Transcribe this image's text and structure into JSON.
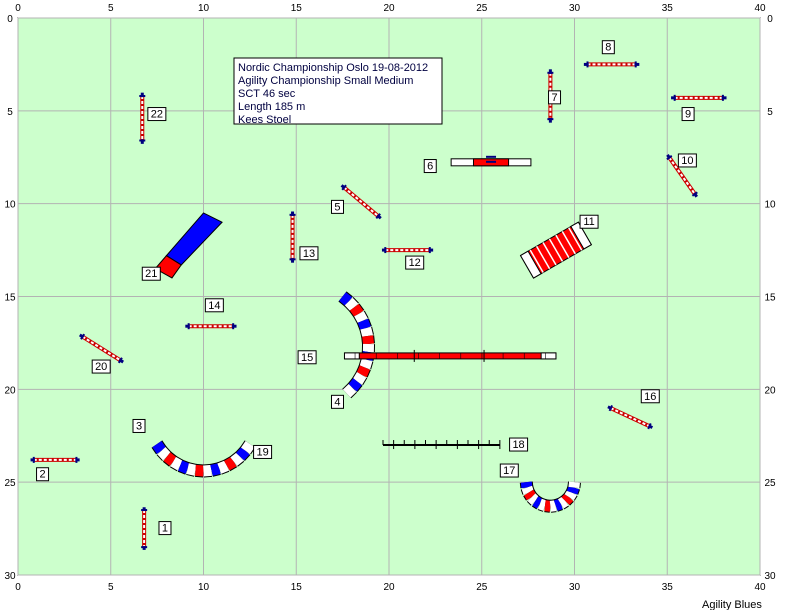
{
  "field": {
    "width": 40,
    "height": 30,
    "x_ticks": [
      0,
      5,
      10,
      15,
      20,
      25,
      30,
      35,
      40
    ],
    "y_ticks": [
      0,
      5,
      10,
      15,
      20,
      25,
      30
    ],
    "background": "#ccffcc",
    "grid_color": "#b3b3b3"
  },
  "info_lines": [
    "Nordic Championship Oslo 19-08-2012",
    "Agility Championship Small Medium",
    "SCT 46 sec",
    "Length 185 m",
    "Kees Stoel"
  ],
  "brand": "Agility Blues",
  "colors": {
    "pole": "#000080",
    "bar": "#ffffff",
    "bar_outline": "#cc0000",
    "red": "#ff0000",
    "blue": "#0000ff",
    "white": "#ffffff",
    "tunnel_blue": "#0000ff"
  },
  "obstacles": [
    {
      "num": "1",
      "type": "jump",
      "x": 6.8,
      "y": 27.5,
      "angle": 90,
      "len": 2,
      "label": [
        7.6,
        27.5
      ]
    },
    {
      "num": "2",
      "type": "jump",
      "x": 2.0,
      "y": 23.8,
      "angle": 0,
      "len": 2.3,
      "label": [
        1.0,
        24.6
      ]
    },
    {
      "num": "3",
      "type": "tunnel",
      "cx": 10,
      "cy": 21.5,
      "r": 2.9,
      "a0": 150,
      "a1": 30,
      "label": [
        6.2,
        22.0
      ]
    },
    {
      "num": "4",
      "type": "tunnel",
      "cx": 15.6,
      "cy": 17.7,
      "r": 3.3,
      "a0": -55,
      "a1": 50,
      "label": [
        16.9,
        20.7
      ]
    },
    {
      "num": "5",
      "type": "jump",
      "x": 18.5,
      "y": 9.9,
      "angle": 40,
      "len": 2.4,
      "label": [
        16.9,
        10.2
      ]
    },
    {
      "num": "6",
      "type": "tire",
      "x": 25.5,
      "y": 7.8,
      "angle": 0,
      "len": 4.3,
      "label": [
        21.9,
        8.0
      ]
    },
    {
      "num": "7",
      "type": "jump",
      "x": 28.7,
      "y": 4.2,
      "angle": 90,
      "len": 2.5,
      "label": [
        28.6,
        4.3
      ]
    },
    {
      "num": "8",
      "type": "jump",
      "x": 32.0,
      "y": 2.5,
      "angle": 0,
      "len": 2.6,
      "label": [
        31.5,
        1.6
      ]
    },
    {
      "num": "9",
      "type": "jump",
      "x": 36.7,
      "y": 4.3,
      "angle": 0,
      "len": 2.6,
      "label": [
        35.8,
        5.2
      ]
    },
    {
      "num": "10",
      "type": "jump",
      "x": 35.8,
      "y": 8.5,
      "angle": 55,
      "len": 2.4,
      "label": [
        35.6,
        7.7
      ]
    },
    {
      "num": "11",
      "type": "tunnel_straight",
      "x": 29.0,
      "y": 12.5,
      "angle": -30,
      "len": 3.6,
      "w": 1.4,
      "label": [
        30.3,
        11.0
      ]
    },
    {
      "num": "12",
      "type": "jump",
      "x": 21.0,
      "y": 12.5,
      "angle": 0,
      "len": 2.4,
      "label": [
        20.9,
        13.2
      ]
    },
    {
      "num": "13",
      "type": "jump",
      "x": 14.8,
      "y": 11.8,
      "angle": 90,
      "len": 2.4,
      "label": [
        15.2,
        12.7
      ]
    },
    {
      "num": "14",
      "type": "jump",
      "x": 10.4,
      "y": 16.6,
      "angle": 0,
      "len": 2.4,
      "label": [
        10.1,
        15.5
      ]
    },
    {
      "num": "15",
      "type": "walk",
      "x": 23.3,
      "y": 18.2,
      "angle": 0,
      "len": 11.4,
      "label": [
        15.1,
        18.3
      ]
    },
    {
      "num": "16",
      "type": "jump",
      "x": 33.0,
      "y": 21.5,
      "angle": 25,
      "len": 2.3,
      "label": [
        33.6,
        20.4
      ]
    },
    {
      "num": "17",
      "type": "tunnel",
      "cx": 28.7,
      "cy": 25.0,
      "r": 1.3,
      "a0": 180,
      "a1": 0,
      "label": [
        26.0,
        24.4
      ]
    },
    {
      "num": "18",
      "type": "weave",
      "x": 20.0,
      "y": 23.0,
      "angle": 0,
      "len": 6.3,
      "label": [
        26.5,
        23.0
      ]
    },
    {
      "num": "19",
      "type": "tunnel_end",
      "x": 12.4,
      "y": 23.4,
      "label": [
        12.7,
        23.4
      ]
    },
    {
      "num": "20",
      "type": "jump",
      "x": 4.5,
      "y": 17.8,
      "angle": 32,
      "len": 2.4,
      "label": [
        4.0,
        18.8
      ]
    },
    {
      "num": "21",
      "type": "chute",
      "x": 10.0,
      "y": 11.5,
      "angle": 215,
      "len": 3.0,
      "label": [
        6.7,
        13.8
      ]
    },
    {
      "num": "22",
      "type": "jump",
      "x": 6.7,
      "y": 5.4,
      "angle": 90,
      "len": 2.4,
      "label": [
        7.0,
        5.2
      ]
    }
  ]
}
